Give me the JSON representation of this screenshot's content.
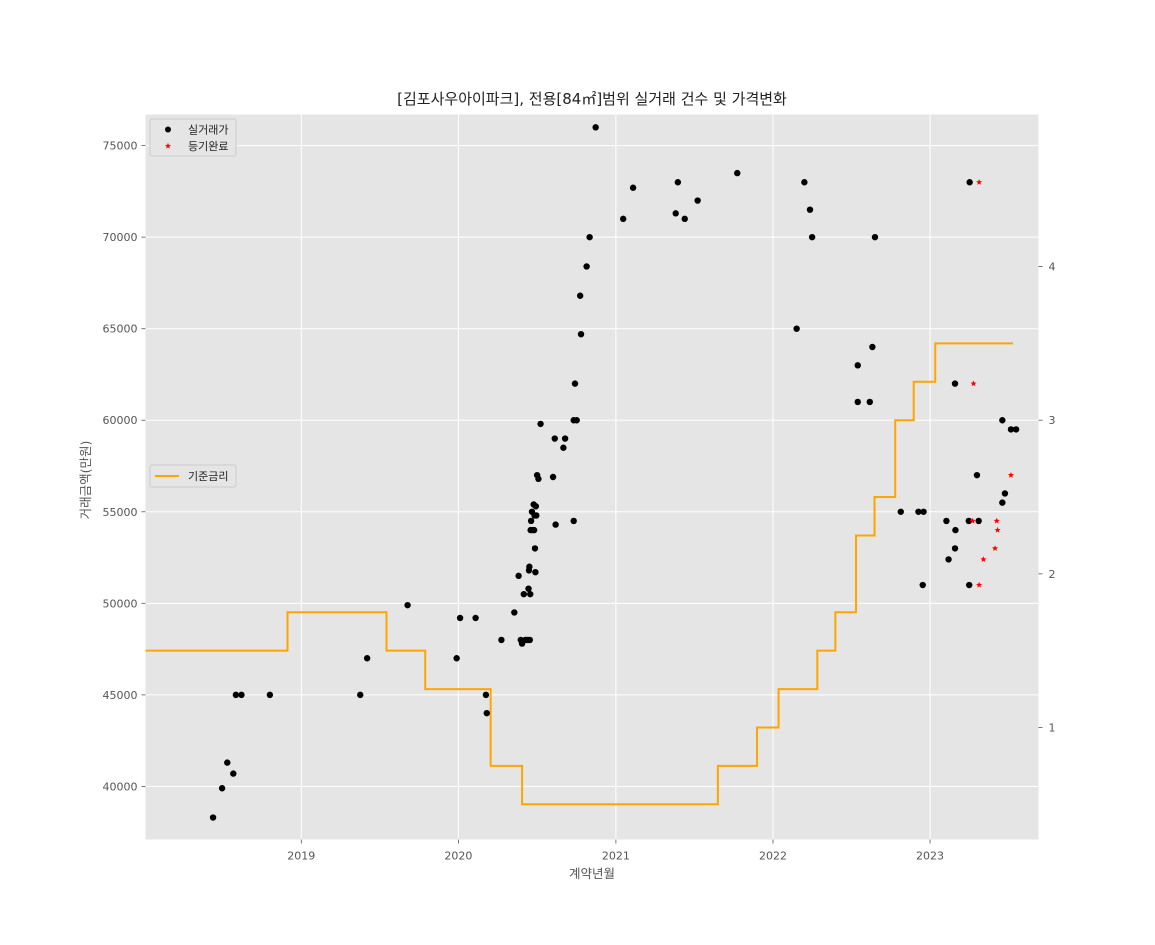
{
  "chart_data": {
    "type": "scatter",
    "title": "[김포사우아이파크], 전용[84㎡]범위 실거래 건수 및 가격변화",
    "xlabel": "계약년월",
    "ylabel": "거래금액(만원)",
    "xlim": [
      "2018-01-04",
      "2023-09-10"
    ],
    "ylim": [
      37100,
      76700
    ],
    "y2lim": [
      0.2708,
      4.99
    ],
    "grid": true,
    "x_ticks": [
      "2019",
      "2020",
      "2021",
      "2022",
      "2023"
    ],
    "y_ticks": [
      "40000",
      "45000",
      "50000",
      "55000",
      "60000",
      "65000",
      "70000",
      "75000"
    ],
    "y2_ticks": [
      "1",
      "2",
      "3",
      "4"
    ],
    "legend_top": {
      "placement": "upper left",
      "items": [
        {
          "label": "실거래가",
          "marker": "circle",
          "color": "#000000"
        },
        {
          "label": "등기완료",
          "marker": "star",
          "color": "#ff0000"
        }
      ]
    },
    "legend_mid": {
      "placement": "center left",
      "items": [
        {
          "label": "기준금리",
          "marker": "line",
          "color": "#ffa500"
        }
      ]
    },
    "series": [
      {
        "name": "실거래가",
        "marker": "circle",
        "color": "#000000",
        "points": [
          [
            "2018-06-10",
            38300
          ],
          [
            "2018-07-01",
            39900
          ],
          [
            "2018-07-13",
            41300
          ],
          [
            "2018-07-27",
            40700
          ],
          [
            "2018-08-02",
            45000
          ],
          [
            "2018-08-15",
            45000
          ],
          [
            "2018-10-20",
            45000
          ],
          [
            "2019-05-18",
            45000
          ],
          [
            "2019-06-03",
            47000
          ],
          [
            "2019-09-05",
            49900
          ],
          [
            "2019-12-28",
            47000
          ],
          [
            "2020-01-05",
            49200
          ],
          [
            "2020-02-10",
            49200
          ],
          [
            "2020-03-05",
            45000
          ],
          [
            "2020-03-07",
            44000
          ],
          [
            "2020-04-10",
            48000
          ],
          [
            "2020-05-10",
            49500
          ],
          [
            "2020-05-20",
            51500
          ],
          [
            "2020-05-25",
            48000
          ],
          [
            "2020-05-28",
            47800
          ],
          [
            "2020-06-01",
            50500
          ],
          [
            "2020-06-05",
            48000
          ],
          [
            "2020-06-10",
            48000
          ],
          [
            "2020-06-12",
            50800
          ],
          [
            "2020-06-13",
            51800
          ],
          [
            "2020-06-14",
            52000
          ],
          [
            "2020-06-15",
            48000
          ],
          [
            "2020-06-16",
            50500
          ],
          [
            "2020-06-17",
            54000
          ],
          [
            "2020-06-18",
            54500
          ],
          [
            "2020-06-20",
            55000
          ],
          [
            "2020-06-22",
            54000
          ],
          [
            "2020-06-24",
            55400
          ],
          [
            "2020-06-25",
            54000
          ],
          [
            "2020-06-26",
            54800
          ],
          [
            "2020-06-27",
            53000
          ],
          [
            "2020-06-28",
            51700
          ],
          [
            "2020-06-29",
            55300
          ],
          [
            "2020-06-30",
            54800
          ],
          [
            "2020-07-02",
            57000
          ],
          [
            "2020-07-05",
            56800
          ],
          [
            "2020-07-10",
            59800
          ],
          [
            "2020-08-08",
            56900
          ],
          [
            "2020-08-12",
            59000
          ],
          [
            "2020-08-14",
            54300
          ],
          [
            "2020-09-01",
            58500
          ],
          [
            "2020-09-05",
            59000
          ],
          [
            "2020-09-25",
            54500
          ],
          [
            "2020-09-25",
            60000
          ],
          [
            "2020-09-28",
            62000
          ],
          [
            "2020-10-02",
            60000
          ],
          [
            "2020-10-10",
            66800
          ],
          [
            "2020-10-12",
            64700
          ],
          [
            "2020-10-25",
            68400
          ],
          [
            "2020-11-01",
            70000
          ],
          [
            "2020-11-15",
            76000
          ],
          [
            "2021-01-18",
            71000
          ],
          [
            "2021-02-10",
            72700
          ],
          [
            "2021-05-20",
            71300
          ],
          [
            "2021-05-25",
            73000
          ],
          [
            "2021-06-10",
            71000
          ],
          [
            "2021-07-10",
            72000
          ],
          [
            "2021-10-10",
            73500
          ],
          [
            "2022-02-25",
            65000
          ],
          [
            "2022-03-15",
            73000
          ],
          [
            "2022-03-28",
            71500
          ],
          [
            "2022-04-02",
            70000
          ],
          [
            "2022-07-17",
            63000
          ],
          [
            "2022-07-17",
            61000
          ],
          [
            "2022-08-14",
            61000
          ],
          [
            "2022-08-20",
            64000
          ],
          [
            "2022-08-26",
            70000
          ],
          [
            "2022-10-25",
            55000
          ],
          [
            "2022-12-05",
            55000
          ],
          [
            "2022-12-15",
            51000
          ],
          [
            "2022-12-17",
            55000
          ],
          [
            "2023-02-08",
            54500
          ],
          [
            "2023-02-13",
            52400
          ],
          [
            "2023-02-28",
            62000
          ],
          [
            "2023-02-28",
            53000
          ],
          [
            "2023-03-01",
            54000
          ],
          [
            "2023-04-01",
            54500
          ],
          [
            "2023-04-02",
            51000
          ],
          [
            "2023-04-03",
            73000
          ],
          [
            "2023-04-20",
            57000
          ],
          [
            "2023-04-24",
            54500
          ],
          [
            "2023-06-18",
            55500
          ],
          [
            "2023-06-24",
            56000
          ],
          [
            "2023-06-18",
            60000
          ],
          [
            "2023-07-08",
            59500
          ],
          [
            "2023-07-20",
            59500
          ]
        ]
      },
      {
        "name": "등기완료",
        "marker": "star",
        "color": "#ff0000",
        "points": [
          [
            "2023-04-12",
            62000
          ],
          [
            "2023-04-25",
            73000
          ],
          [
            "2023-04-10",
            54500
          ],
          [
            "2023-04-25",
            51000
          ],
          [
            "2023-05-05",
            52400
          ],
          [
            "2023-06-01",
            53000
          ],
          [
            "2023-06-05",
            54500
          ],
          [
            "2023-06-07",
            54000
          ],
          [
            "2023-07-08",
            57000
          ]
        ]
      },
      {
        "name": "기준금리",
        "type": "step",
        "axis": "right",
        "color": "#ffa500",
        "points": [
          [
            "2018-01-04",
            1.5
          ],
          [
            "2018-11-30",
            1.75
          ],
          [
            "2019-07-18",
            1.5
          ],
          [
            "2019-10-16",
            1.25
          ],
          [
            "2020-03-16",
            0.75
          ],
          [
            "2020-05-28",
            0.5
          ],
          [
            "2021-08-26",
            0.75
          ],
          [
            "2021-11-25",
            1.0
          ],
          [
            "2022-01-14",
            1.25
          ],
          [
            "2022-04-14",
            1.5
          ],
          [
            "2022-05-26",
            1.75
          ],
          [
            "2022-07-13",
            2.25
          ],
          [
            "2022-08-25",
            2.5
          ],
          [
            "2022-10-12",
            3.0
          ],
          [
            "2022-11-24",
            3.25
          ],
          [
            "2023-01-13",
            3.5
          ],
          [
            "2023-07-13",
            3.5
          ]
        ]
      }
    ]
  }
}
